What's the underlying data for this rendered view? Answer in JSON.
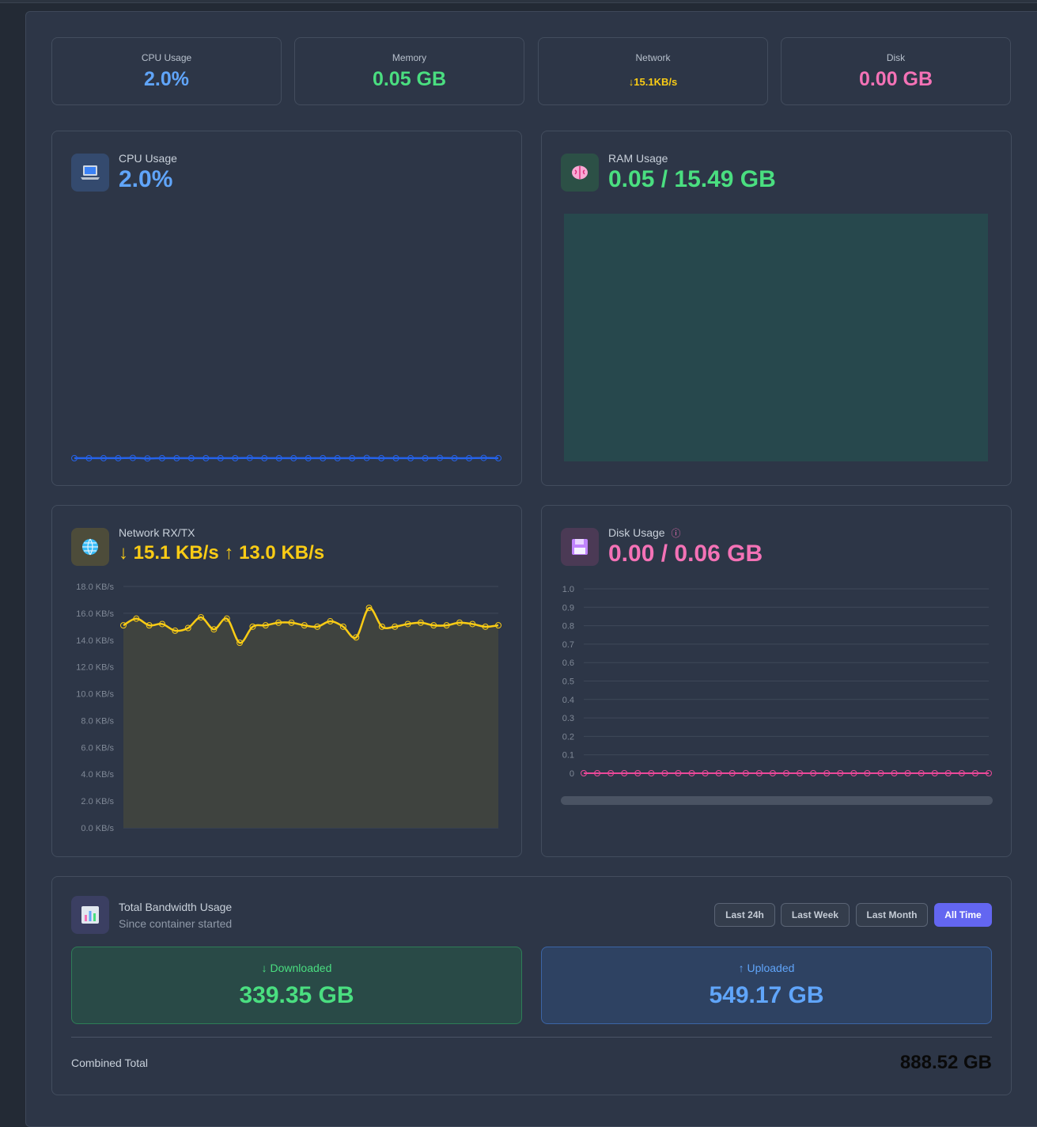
{
  "stats": [
    {
      "label": "CPU Usage",
      "value": "2.0%",
      "color": "#60a5fa"
    },
    {
      "label": "Memory",
      "value": "0.05 GB",
      "color": "#4ade80"
    },
    {
      "label": "Network",
      "value": "↓15.1KB/s",
      "color": "#facc15"
    },
    {
      "label": "Disk",
      "value": "0.00 GB",
      "color": "#f472b6"
    }
  ],
  "cpu": {
    "title": "CPU Usage",
    "value": "2.0%",
    "icon": "laptop-icon",
    "color": "#60a5fa",
    "chart_data": {
      "type": "line",
      "values": [
        2.0,
        2.0,
        2.0,
        2.0,
        2.1,
        1.9,
        2.0,
        2.0,
        2.0,
        2.0,
        2.0,
        2.0,
        2.1,
        2.0,
        2.0,
        2.0,
        2.0,
        2.0,
        2.0,
        2.0,
        2.1,
        2.0,
        2.0,
        2.0,
        2.0,
        2.1,
        2.0,
        2.0,
        2.1,
        2.0
      ],
      "ylim": [
        0,
        100
      ]
    }
  },
  "ram": {
    "title": "RAM Usage",
    "value": "0.05 / 15.49 GB",
    "icon": "brain-icon",
    "color": "#4ade80",
    "chart_data": {
      "type": "area",
      "values": [
        0.053,
        0.053,
        0.055,
        0.053,
        0.052,
        0.052,
        0.052,
        0.052,
        0.052,
        0.052,
        0.052,
        0.052,
        0.052,
        0.052,
        0.052,
        0.052,
        0.052,
        0.052,
        0.052,
        0.052,
        0.052,
        0.052,
        0.052,
        0.052,
        0.052,
        0.052,
        0.053,
        0.054,
        0.052,
        0.052,
        0.052,
        0.052
      ],
      "ylim": [
        0,
        0.06
      ]
    }
  },
  "network": {
    "title": "Network RX/TX",
    "value": "↓ 15.1 KB/s ↑ 13.0 KB/s",
    "icon": "globe-icon",
    "color": "#facc15",
    "chart_data": {
      "type": "area",
      "ylim": [
        0,
        18
      ],
      "yticks": [
        "18.0 KB/s",
        "16.0 KB/s",
        "14.0 KB/s",
        "12.0 KB/s",
        "10.0 KB/s",
        "8.0 KB/s",
        "6.0 KB/s",
        "4.0 KB/s",
        "2.0 KB/s",
        "0.0 KB/s"
      ],
      "values": [
        15.1,
        15.6,
        15.1,
        15.2,
        14.7,
        14.9,
        15.7,
        14.8,
        15.6,
        13.8,
        15.0,
        15.1,
        15.3,
        15.3,
        15.1,
        15.0,
        15.4,
        15.0,
        14.2,
        16.4,
        15.0,
        15.0,
        15.2,
        15.3,
        15.1,
        15.1,
        15.3,
        15.2,
        15.0,
        15.1
      ]
    }
  },
  "disk": {
    "title": "Disk Usage",
    "info": "ⓘ",
    "value": "0.00 / 0.06 GB",
    "icon": "floppy-icon",
    "color": "#f472b6",
    "chart_data": {
      "type": "line",
      "ylim": [
        0,
        1
      ],
      "yticks": [
        "1.0",
        "0.9",
        "0.8",
        "0.7",
        "0.6",
        "0.5",
        "0.4",
        "0.3",
        "0.2",
        "0.1",
        "0"
      ],
      "values": [
        0,
        0,
        0,
        0,
        0,
        0,
        0,
        0,
        0,
        0,
        0,
        0,
        0,
        0,
        0,
        0,
        0,
        0,
        0,
        0,
        0,
        0,
        0,
        0,
        0,
        0,
        0,
        0,
        0,
        0,
        0
      ]
    }
  },
  "bandwidth": {
    "icon": "bar-chart-icon",
    "title": "Total Bandwidth Usage",
    "subtitle": "Since container started",
    "ranges": [
      "Last 24h",
      "Last Week",
      "Last Month",
      "All Time"
    ],
    "active_range": "All Time",
    "downloaded_label": "↓ Downloaded",
    "downloaded_value": "339.35 GB",
    "uploaded_label": "↑ Uploaded",
    "uploaded_value": "549.17 GB",
    "combined_label": "Combined Total",
    "combined_value": "888.52 GB"
  }
}
